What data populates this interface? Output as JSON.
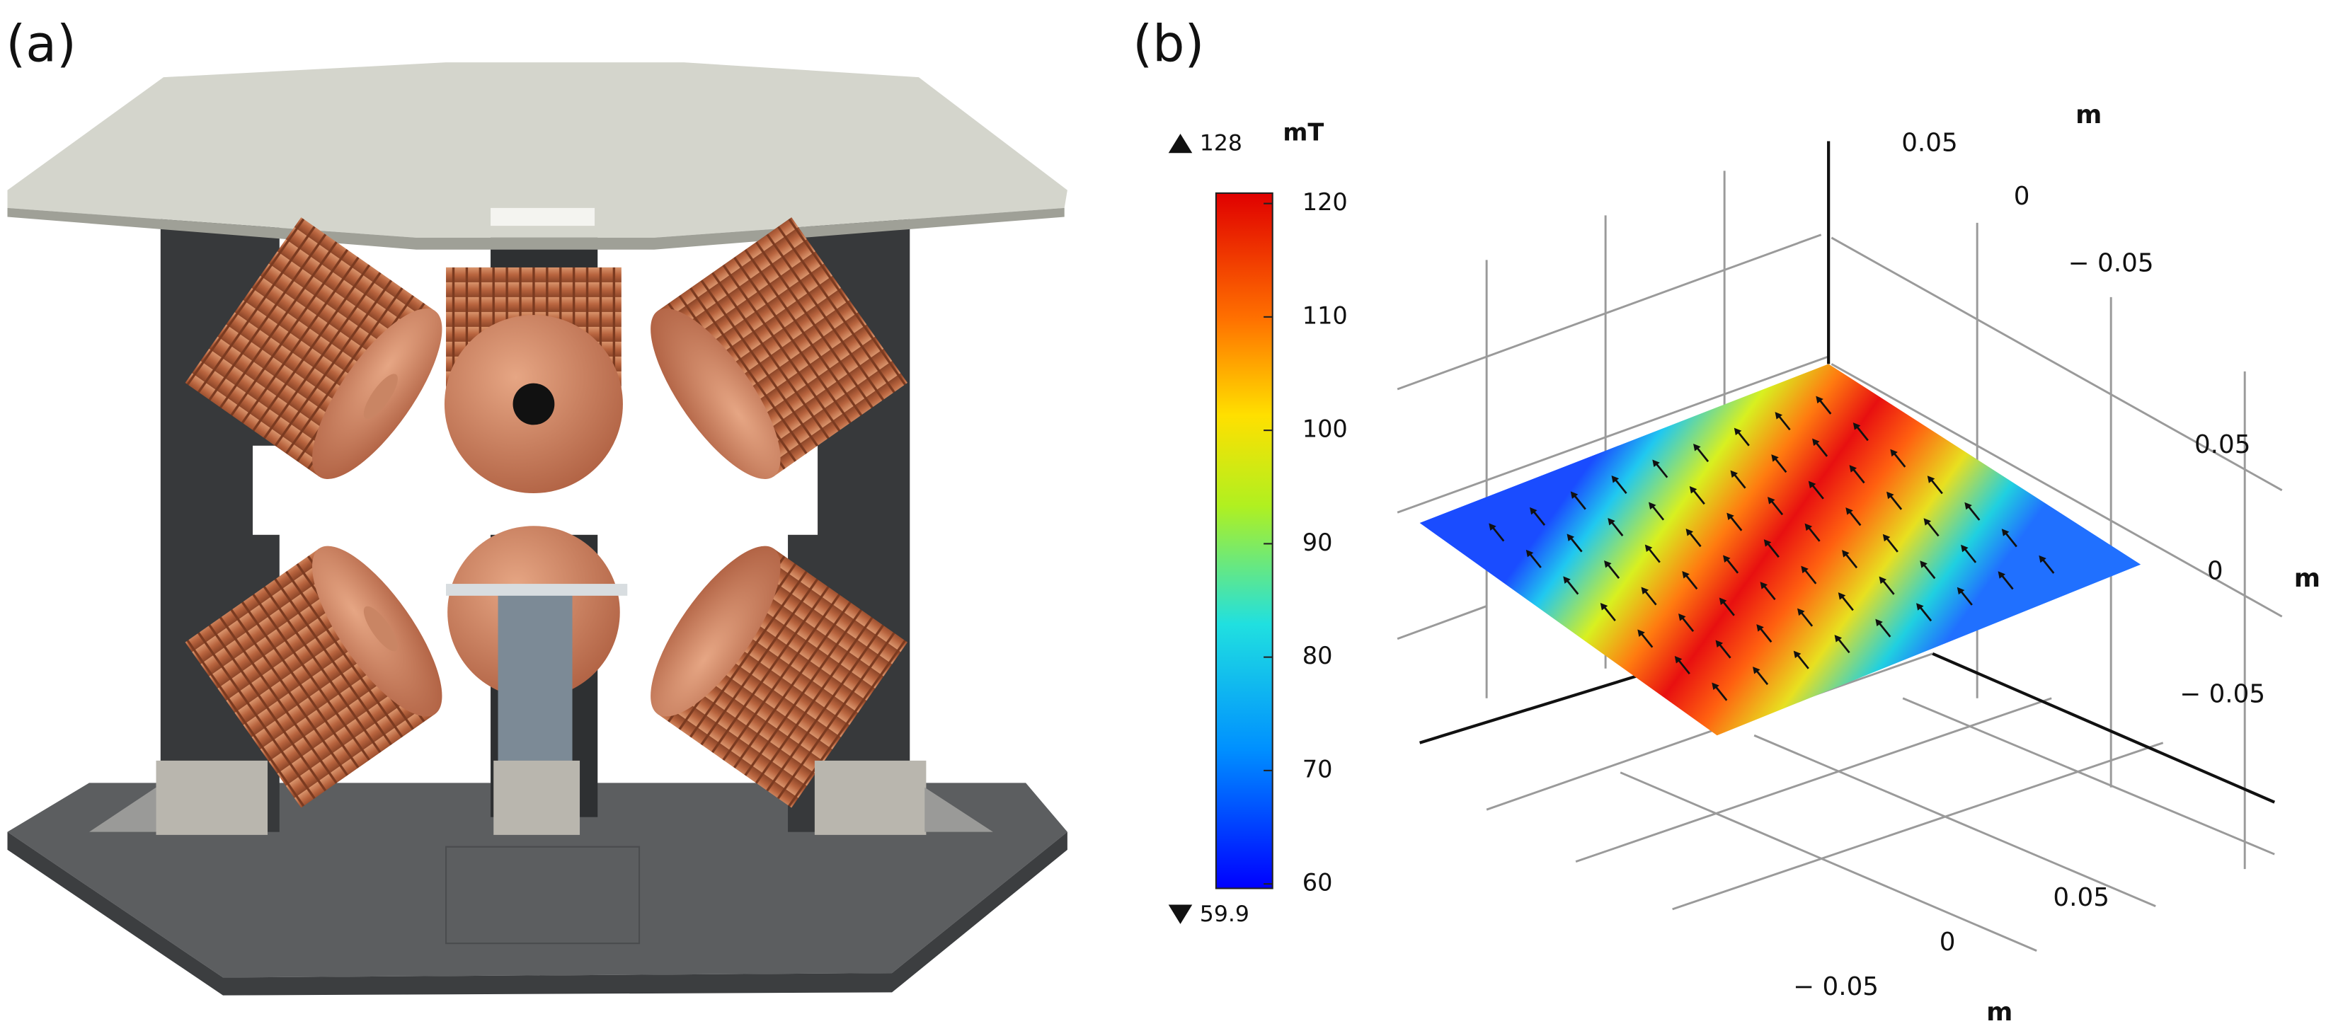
{
  "panels": {
    "a": {
      "label": "(a)"
    },
    "b": {
      "label": "(b)",
      "colorbar": {
        "unit": "mT",
        "max": 128,
        "min": 59.9,
        "ticks": [
          60,
          70,
          80,
          90,
          100,
          110,
          120
        ]
      },
      "axes": [
        {
          "label": "m",
          "ticks": [
            0.05,
            0,
            {
              "value": -0.05,
              "label": "− 0.05"
            }
          ]
        },
        {
          "label": "m",
          "ticks": [
            0.05,
            0,
            {
              "value": -0.05,
              "label": "− 0.05"
            }
          ]
        },
        {
          "label": "m",
          "ticks": [
            0.05,
            0,
            {
              "value": -0.05,
              "label": "− 0.05"
            }
          ]
        }
      ]
    }
  }
}
